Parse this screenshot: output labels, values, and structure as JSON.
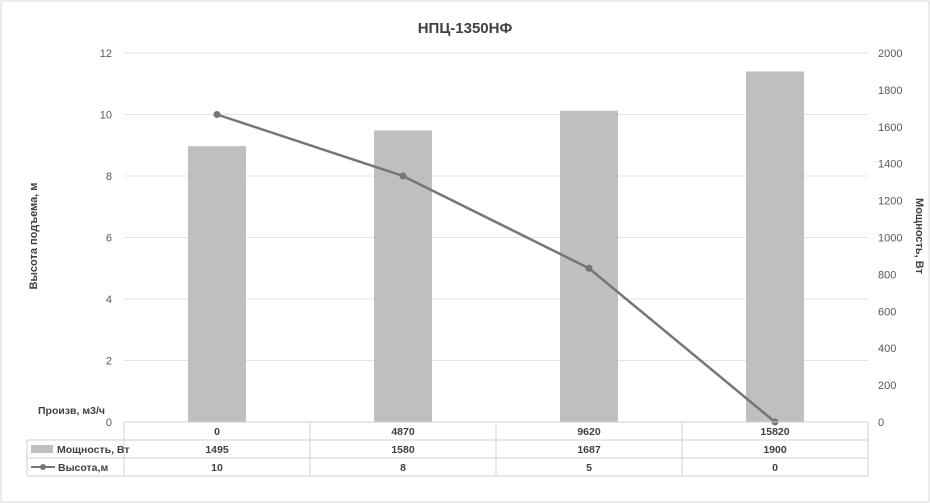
{
  "chart_data": {
    "type": "bar",
    "title": "НПЦ-1350НФ",
    "categories_label": "Произв, м3/ч",
    "categories": [
      "0",
      "4870",
      "9620",
      "15820"
    ],
    "ylabel_left": "Высота подъема, м",
    "ylabel_right": "Мощность, Вт",
    "ylim_left": [
      0,
      12
    ],
    "yticks_left": [
      "0",
      "2",
      "4",
      "6",
      "8",
      "10",
      "12"
    ],
    "ylim_right": [
      0,
      2000
    ],
    "yticks_right": [
      "0",
      "200",
      "400",
      "600",
      "800",
      "1000",
      "1200",
      "1400",
      "1600",
      "1800",
      "2000"
    ],
    "grid": true,
    "legend_placement": "data-table-left",
    "series": [
      {
        "name": "Мощность, Вт",
        "kind": "bar",
        "axis": "right",
        "color": "#bfbfbf",
        "values": [
          1495,
          1580,
          1687,
          1900
        ],
        "labels": [
          "1495",
          "1580",
          "1687",
          "1900"
        ]
      },
      {
        "name": "Высота,м",
        "kind": "line",
        "axis": "left",
        "color": "#767676",
        "values": [
          10,
          8,
          5,
          0
        ],
        "labels": [
          "10",
          "8",
          "5",
          "0"
        ]
      }
    ]
  }
}
